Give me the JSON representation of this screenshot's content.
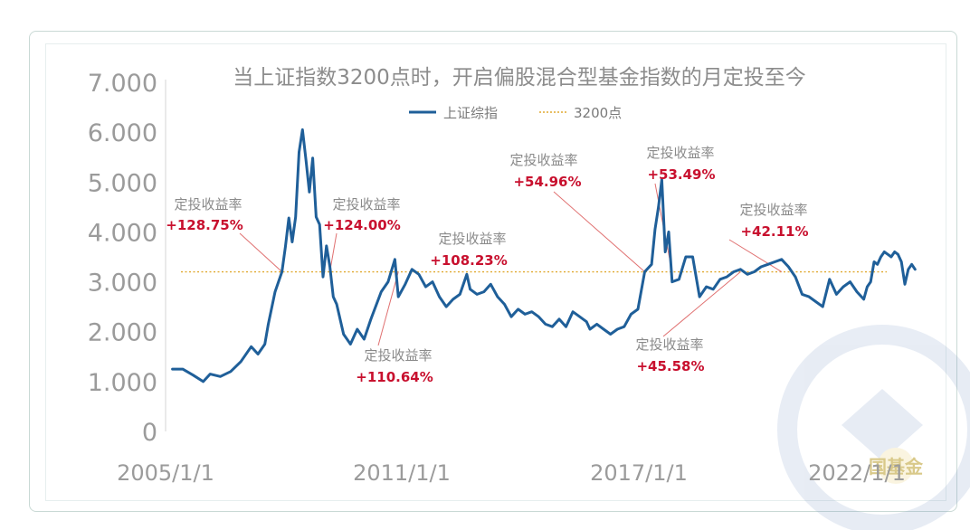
{
  "chart_data": {
    "type": "line",
    "title": "当上证指数3200点时，开启偏股混合型基金指数的月定投至今",
    "y_ticks": [
      "0",
      "1.000",
      "2.000",
      "3.000",
      "4.000",
      "5.000",
      "6.000",
      "7.000"
    ],
    "ylim": [
      0,
      7000
    ],
    "x_ticks": [
      "2005/1/1",
      "2011/1/1",
      "2017/1/1",
      "2022/1/1"
    ],
    "xlim": [
      "2005-01",
      "2023-01"
    ],
    "legend_position": "top-center",
    "series": [
      {
        "name": "上证综指",
        "color": "#1f5f99",
        "points": [
          [
            "2005-03",
            1250
          ],
          [
            "2005-06",
            1250
          ],
          [
            "2005-09",
            1130
          ],
          [
            "2005-12",
            1000
          ],
          [
            "2006-02",
            1150
          ],
          [
            "2006-05",
            1100
          ],
          [
            "2006-08",
            1200
          ],
          [
            "2006-11",
            1400
          ],
          [
            "2007-02",
            1700
          ],
          [
            "2007-04",
            1550
          ],
          [
            "2007-06",
            1750
          ],
          [
            "2007-07",
            2150
          ],
          [
            "2007-09",
            2800
          ],
          [
            "2007-11",
            3200
          ],
          [
            "2007-12",
            3700
          ],
          [
            "2008-01",
            4280
          ],
          [
            "2008-02",
            3800
          ],
          [
            "2008-03",
            4300
          ],
          [
            "2008-04",
            5600
          ],
          [
            "2008-05",
            6050
          ],
          [
            "2008-06",
            5450
          ],
          [
            "2008-07",
            4800
          ],
          [
            "2008-08",
            5480
          ],
          [
            "2008-09",
            4300
          ],
          [
            "2008-10",
            4150
          ],
          [
            "2008-11",
            3100
          ],
          [
            "2008-12",
            3720
          ],
          [
            "2009-01",
            3300
          ],
          [
            "2009-02",
            2700
          ],
          [
            "2009-03",
            2550
          ],
          [
            "2009-05",
            1950
          ],
          [
            "2009-07",
            1750
          ],
          [
            "2009-09",
            2050
          ],
          [
            "2009-11",
            1850
          ],
          [
            "2010-01",
            2250
          ],
          [
            "2010-04",
            2800
          ],
          [
            "2010-06",
            3000
          ],
          [
            "2010-08",
            3450
          ],
          [
            "2010-09",
            2700
          ],
          [
            "2010-11",
            2950
          ],
          [
            "2011-01",
            3250
          ],
          [
            "2011-03",
            3150
          ],
          [
            "2011-05",
            2900
          ],
          [
            "2011-07",
            3000
          ],
          [
            "2011-09",
            2700
          ],
          [
            "2011-11",
            2500
          ],
          [
            "2012-01",
            2650
          ],
          [
            "2012-03",
            2750
          ],
          [
            "2012-05",
            3150
          ],
          [
            "2012-06",
            2850
          ],
          [
            "2012-08",
            2750
          ],
          [
            "2012-10",
            2800
          ],
          [
            "2012-12",
            2950
          ],
          [
            "2013-02",
            2700
          ],
          [
            "2013-04",
            2550
          ],
          [
            "2013-06",
            2300
          ],
          [
            "2013-08",
            2450
          ],
          [
            "2013-10",
            2350
          ],
          [
            "2013-12",
            2400
          ],
          [
            "2014-02",
            2300
          ],
          [
            "2014-04",
            2150
          ],
          [
            "2014-06",
            2100
          ],
          [
            "2014-08",
            2250
          ],
          [
            "2014-10",
            2100
          ],
          [
            "2014-12",
            2400
          ],
          [
            "2015-02",
            2300
          ],
          [
            "2015-04",
            2200
          ],
          [
            "2015-05",
            2050
          ],
          [
            "2015-07",
            2150
          ],
          [
            "2015-09",
            2050
          ],
          [
            "2015-11",
            1950
          ],
          [
            "2016-01",
            2050
          ],
          [
            "2016-03",
            2100
          ],
          [
            "2016-05",
            2350
          ],
          [
            "2016-07",
            2450
          ],
          [
            "2016-09",
            3200
          ],
          [
            "2016-11",
            3350
          ],
          [
            "2016-12",
            4050
          ],
          [
            "2017-01",
            4500
          ],
          [
            "2017-02",
            5050
          ],
          [
            "2017-03",
            3600
          ],
          [
            "2017-04",
            4000
          ],
          [
            "2017-05",
            3000
          ],
          [
            "2017-07",
            3050
          ],
          [
            "2017-09",
            3500
          ],
          [
            "2017-11",
            3500
          ],
          [
            "2018-01",
            2700
          ],
          [
            "2018-03",
            2900
          ],
          [
            "2018-05",
            2850
          ],
          [
            "2018-07",
            3050
          ],
          [
            "2018-09",
            3100
          ],
          [
            "2018-11",
            3200
          ],
          [
            "2019-01",
            3250
          ],
          [
            "2019-03",
            3150
          ],
          [
            "2019-05",
            3200
          ],
          [
            "2019-07",
            3300
          ],
          [
            "2019-09",
            3350
          ],
          [
            "2019-11",
            3400
          ],
          [
            "2020-01",
            3450
          ],
          [
            "2020-03",
            3300
          ],
          [
            "2020-05",
            3100
          ],
          [
            "2020-07",
            2750
          ],
          [
            "2020-09",
            2700
          ],
          [
            "2020-11",
            2600
          ],
          [
            "2021-01",
            2500
          ],
          [
            "2021-03",
            3050
          ],
          [
            "2021-05",
            2750
          ],
          [
            "2021-07",
            2900
          ],
          [
            "2021-09",
            3000
          ],
          [
            "2021-11",
            2800
          ],
          [
            "2022-01",
            2650
          ],
          [
            "2022-02",
            2900
          ],
          [
            "2022-03",
            3000
          ],
          [
            "2022-04",
            3400
          ],
          [
            "2022-05",
            3350
          ],
          [
            "2022-06",
            3500
          ],
          [
            "2022-07",
            3600
          ],
          [
            "2022-08",
            3550
          ],
          [
            "2022-09",
            3500
          ],
          [
            "2022-10",
            3600
          ],
          [
            "2022-11",
            3550
          ],
          [
            "2022-12",
            3400
          ],
          [
            "2023-01",
            2950
          ],
          [
            "2023-02",
            3250
          ],
          [
            "2023-03",
            3350
          ],
          [
            "2023-04",
            3250
          ]
        ]
      },
      {
        "name": "3200点",
        "color": "#e0a930",
        "style": "dotted",
        "value": 3200
      }
    ],
    "annotations": [
      {
        "label": "定投收益率",
        "value": "+128.75%",
        "target": [
          "2007-11",
          3200
        ]
      },
      {
        "label": "定投收益率",
        "value": "+124.00%",
        "target": [
          "2009-01",
          3200
        ]
      },
      {
        "label": "定投收益率",
        "value": "+110.64%",
        "target": [
          "2010-09",
          3200
        ]
      },
      {
        "label": "定投收益率",
        "value": "+108.23%",
        "target": []
      },
      {
        "label": "定投收益率",
        "value": "+54.96%",
        "target": [
          "2016-09",
          3200
        ]
      },
      {
        "label": "定投收益率",
        "value": "+53.49%",
        "target": [
          "2017-05",
          3200
        ]
      },
      {
        "label": "定投收益率",
        "value": "+45.58%",
        "target": [
          "2019-01",
          3200
        ]
      },
      {
        "label": "定投收益率",
        "value": "+42.11%",
        "target": [
          "2020-01",
          3200
        ]
      }
    ]
  },
  "watermark": {
    "text": "国基金"
  }
}
